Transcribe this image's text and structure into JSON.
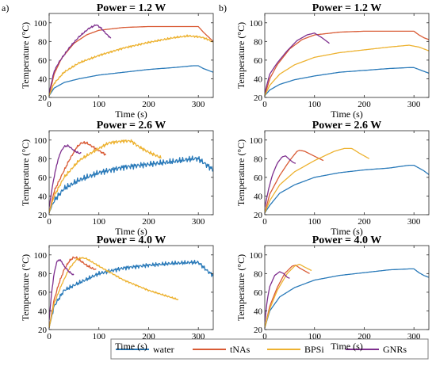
{
  "figure": {
    "panel_labels": [
      "a)",
      "b)"
    ],
    "legend": [
      {
        "label": "water",
        "color": "#2a7ab9"
      },
      {
        "label": "tNAs",
        "color": "#d95b35"
      },
      {
        "label": "BPSi",
        "color": "#edb230"
      },
      {
        "label": "GNRs",
        "color": "#7e2f8e"
      }
    ]
  },
  "chart_data": [
    {
      "type": "line",
      "panel": "a)",
      "title": "Power = 1.2 W",
      "xlabel": "Time (s)",
      "ylabel": "Temperature (°C)",
      "xlim": [
        0,
        330
      ],
      "ylim": [
        20,
        110
      ],
      "xticks": [
        0,
        100,
        200,
        300
      ],
      "yticks": [
        20,
        40,
        60,
        80,
        100
      ],
      "series": [
        {
          "name": "water",
          "noise": 0,
          "x": [
            0,
            10,
            30,
            60,
            100,
            150,
            200,
            250,
            290,
            300,
            310,
            320,
            330
          ],
          "y": [
            22,
            30,
            36,
            40,
            44,
            47,
            50,
            52,
            54,
            54,
            51,
            49,
            47
          ]
        },
        {
          "name": "tNAs",
          "noise": 0,
          "x": [
            0,
            10,
            25,
            50,
            75,
            100,
            150,
            200,
            250,
            300,
            310,
            320,
            330
          ],
          "y": [
            22,
            45,
            62,
            78,
            87,
            92,
            95,
            96,
            96,
            96,
            90,
            85,
            80
          ]
        },
        {
          "name": "BPSi",
          "noise": 1.2,
          "x": [
            0,
            10,
            30,
            60,
            100,
            150,
            200,
            250,
            280,
            300,
            310,
            320,
            330
          ],
          "y": [
            22,
            35,
            47,
            57,
            65,
            73,
            79,
            84,
            86,
            85,
            84,
            82,
            79
          ]
        },
        {
          "name": "GNRs",
          "noise": 1,
          "x": [
            0,
            10,
            20,
            40,
            60,
            80,
            95,
            105,
            115,
            125
          ],
          "y": [
            25,
            48,
            58,
            73,
            85,
            94,
            98,
            94,
            88,
            83
          ]
        }
      ]
    },
    {
      "type": "line",
      "panel": "b)",
      "title": "Power = 1.2 W",
      "xlabel": "Time (s)",
      "ylabel": "Temperature (°C)",
      "xlim": [
        0,
        330
      ],
      "ylim": [
        20,
        110
      ],
      "xticks": [
        0,
        100,
        200,
        300
      ],
      "yticks": [
        20,
        40,
        60,
        80,
        100
      ],
      "series": [
        {
          "name": "water",
          "noise": 0,
          "x": [
            0,
            10,
            30,
            60,
            100,
            150,
            200,
            250,
            290,
            300,
            310,
            320,
            330
          ],
          "y": [
            22,
            28,
            34,
            39,
            43,
            47,
            49,
            51,
            52,
            52,
            50,
            48,
            46
          ]
        },
        {
          "name": "tNAs",
          "noise": 0,
          "x": [
            0,
            10,
            25,
            50,
            75,
            100,
            150,
            200,
            250,
            300,
            310,
            320,
            330
          ],
          "y": [
            22,
            40,
            55,
            72,
            82,
            87,
            90,
            91,
            91,
            91,
            87,
            84,
            82
          ]
        },
        {
          "name": "BPSi",
          "noise": 0,
          "x": [
            0,
            10,
            30,
            60,
            100,
            150,
            200,
            250,
            290,
            300,
            310,
            320,
            330
          ],
          "y": [
            22,
            33,
            45,
            55,
            63,
            68,
            71,
            74,
            76,
            75,
            74,
            72,
            70
          ]
        },
        {
          "name": "GNRs",
          "noise": 0,
          "x": [
            0,
            10,
            25,
            45,
            65,
            85,
            100,
            115,
            130
          ],
          "y": [
            25,
            45,
            57,
            70,
            81,
            87,
            89,
            84,
            78
          ]
        }
      ]
    },
    {
      "type": "line",
      "panel": "a)",
      "title": "Power = 2.6 W",
      "xlabel": "Time (s)",
      "ylabel": "Temperature (°C)",
      "xlim": [
        0,
        330
      ],
      "ylim": [
        20,
        110
      ],
      "xticks": [
        0,
        100,
        200,
        300
      ],
      "yticks": [
        20,
        40,
        60,
        80,
        100
      ],
      "series": [
        {
          "name": "water",
          "noise": 3.5,
          "x": [
            0,
            10,
            30,
            60,
            100,
            150,
            200,
            250,
            290,
            300,
            310,
            320,
            330
          ],
          "y": [
            22,
            35,
            48,
            57,
            65,
            71,
            74,
            77,
            80,
            80,
            76,
            72,
            68
          ]
        },
        {
          "name": "tNAs",
          "noise": 1.5,
          "x": [
            0,
            10,
            25,
            40,
            55,
            65,
            75,
            90,
            105,
            115
          ],
          "y": [
            22,
            45,
            62,
            78,
            92,
            97,
            97,
            92,
            87,
            84
          ]
        },
        {
          "name": "BPSi",
          "noise": 2,
          "x": [
            0,
            10,
            30,
            60,
            90,
            120,
            150,
            165,
            180,
            200,
            225
          ],
          "y": [
            22,
            40,
            60,
            78,
            88,
            97,
            99,
            99,
            93,
            87,
            81
          ]
        },
        {
          "name": "GNRs",
          "noise": 1,
          "x": [
            0,
            8,
            15,
            22,
            30,
            38,
            45,
            52,
            60,
            65
          ],
          "y": [
            28,
            55,
            73,
            86,
            93,
            94,
            91,
            88,
            86,
            86
          ]
        }
      ]
    },
    {
      "type": "line",
      "panel": "b)",
      "title": "Power = 2.6 W",
      "xlabel": "Time (s)",
      "ylabel": "Temperature (°C)",
      "xlim": [
        0,
        330
      ],
      "ylim": [
        20,
        110
      ],
      "xticks": [
        0,
        100,
        200,
        300
      ],
      "yticks": [
        20,
        40,
        60,
        80,
        100
      ],
      "series": [
        {
          "name": "water",
          "noise": 0,
          "x": [
            0,
            10,
            30,
            60,
            100,
            150,
            200,
            250,
            290,
            300,
            310,
            320,
            330
          ],
          "y": [
            22,
            30,
            43,
            52,
            60,
            65,
            68,
            70,
            73,
            73,
            70,
            67,
            63
          ]
        },
        {
          "name": "tNAs",
          "noise": 0,
          "x": [
            0,
            10,
            30,
            50,
            65,
            70,
            80,
            95,
            110,
            118
          ],
          "y": [
            22,
            42,
            62,
            78,
            88,
            89,
            88,
            84,
            80,
            78
          ]
        },
        {
          "name": "BPSi",
          "noise": 0,
          "x": [
            0,
            10,
            30,
            60,
            100,
            140,
            160,
            175,
            190,
            210
          ],
          "y": [
            22,
            35,
            52,
            66,
            78,
            88,
            91,
            91,
            86,
            80
          ]
        },
        {
          "name": "GNRs",
          "noise": 0,
          "x": [
            0,
            8,
            15,
            25,
            35,
            42,
            50,
            57,
            62
          ],
          "y": [
            28,
            48,
            62,
            75,
            82,
            83,
            79,
            76,
            75
          ]
        }
      ]
    },
    {
      "type": "line",
      "panel": "a)",
      "title": "Power = 4.0 W",
      "xlabel": "Time (s)",
      "ylabel": "Temperature (°C)",
      "xlim": [
        0,
        330
      ],
      "ylim": [
        20,
        110
      ],
      "xticks": [
        0,
        100,
        200,
        300
      ],
      "yticks": [
        20,
        40,
        60,
        80,
        100
      ],
      "series": [
        {
          "name": "water",
          "noise": 2.5,
          "x": [
            0,
            10,
            30,
            60,
            100,
            150,
            200,
            250,
            290,
            300,
            310,
            320,
            330
          ],
          "y": [
            22,
            45,
            62,
            70,
            80,
            86,
            89,
            91,
            92,
            92,
            87,
            82,
            78
          ]
        },
        {
          "name": "tNAs",
          "noise": 1.5,
          "x": [
            0,
            10,
            20,
            30,
            40,
            48,
            55,
            65,
            75,
            85,
            95
          ],
          "y": [
            22,
            52,
            70,
            84,
            93,
            97,
            97,
            93,
            89,
            86,
            84
          ]
        },
        {
          "name": "BPSi",
          "noise": 1,
          "x": [
            0,
            10,
            25,
            40,
            55,
            65,
            75,
            100,
            150,
            200,
            260
          ],
          "y": [
            22,
            48,
            68,
            85,
            95,
            97,
            96,
            88,
            73,
            62,
            52
          ]
        },
        {
          "name": "GNRs",
          "noise": 1,
          "x": [
            0,
            5,
            10,
            15,
            20,
            25,
            30,
            40,
            50
          ],
          "y": [
            30,
            60,
            80,
            92,
            95,
            93,
            88,
            82,
            78
          ]
        }
      ]
    },
    {
      "type": "line",
      "panel": "b)",
      "title": "Power = 4.0 W",
      "xlabel": "Time (s)",
      "ylabel": "Temperature (°C)",
      "xlim": [
        0,
        330
      ],
      "ylim": [
        20,
        110
      ],
      "xticks": [
        0,
        100,
        200,
        300
      ],
      "yticks": [
        20,
        40,
        60,
        80,
        100
      ],
      "series": [
        {
          "name": "water",
          "noise": 0,
          "x": [
            0,
            10,
            30,
            60,
            100,
            150,
            200,
            250,
            290,
            300,
            310,
            320,
            330
          ],
          "y": [
            22,
            40,
            55,
            65,
            73,
            78,
            81,
            84,
            85,
            85,
            81,
            78,
            76
          ]
        },
        {
          "name": "tNAs",
          "noise": 0,
          "x": [
            0,
            10,
            25,
            40,
            55,
            62,
            70,
            80,
            90
          ],
          "y": [
            22,
            45,
            65,
            80,
            88,
            89,
            86,
            83,
            80
          ]
        },
        {
          "name": "BPSi",
          "noise": 0,
          "x": [
            0,
            10,
            25,
            45,
            60,
            70,
            80,
            95
          ],
          "y": [
            22,
            42,
            62,
            80,
            88,
            90,
            87,
            83
          ]
        },
        {
          "name": "GNRs",
          "noise": 0,
          "x": [
            0,
            5,
            10,
            20,
            30,
            38,
            45,
            50
          ],
          "y": [
            28,
            52,
            66,
            78,
            82,
            80,
            76,
            75
          ]
        }
      ]
    }
  ]
}
